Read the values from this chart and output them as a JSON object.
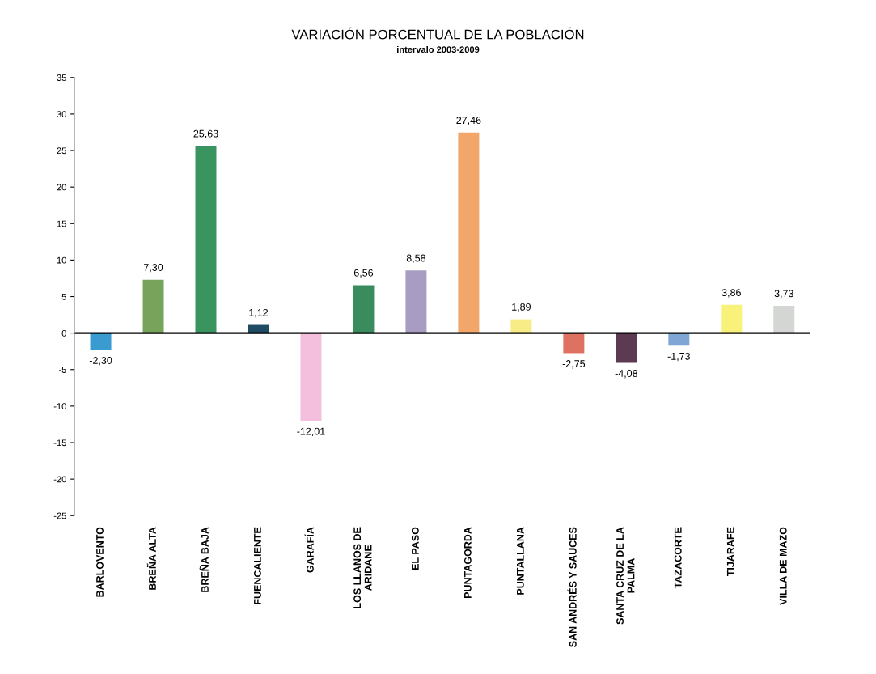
{
  "chart_data": {
    "type": "bar",
    "title": "VARIACIÓN PORCENTUAL DE LA POBLACIÓN",
    "subtitle": "intervalo 2003-2009",
    "categories": [
      "BARLOVENTO",
      "BREÑA ALTA",
      "BREÑA BAJA",
      "FUENCALIENTE",
      "GARAFÍA",
      "LOS LLANOS DE\nARIDANE",
      "EL PASO",
      "PUNTAGORDA",
      "PUNTALLANA",
      "SAN ANDRÉS Y SAUCES",
      "SANTA CRUZ DE LA\nPALMA",
      "TAZACORTE",
      "TIJARAFE",
      "VILLA DE MAZO"
    ],
    "values": [
      -2.3,
      7.3,
      25.63,
      1.12,
      -12.01,
      6.56,
      8.58,
      27.46,
      1.89,
      -2.75,
      -4.08,
      -1.73,
      3.86,
      3.73
    ],
    "value_labels": [
      "-2,30",
      "7,30",
      "25,63",
      "1,12",
      "-12,01",
      "6,56",
      "8,58",
      "27,46",
      "1,89",
      "-2,75",
      "-4,08",
      "-1,73",
      "3,86",
      "3,73"
    ],
    "colors": [
      "#3a9bd0",
      "#77a35a",
      "#3a9460",
      "#1e4c63",
      "#f4bfdc",
      "#3a8c5e",
      "#a99cc3",
      "#f2a66a",
      "#f7ec86",
      "#df7160",
      "#5c3a52",
      "#7fa6d4",
      "#f8f27a",
      "#d3d6d3"
    ],
    "ylim": [
      -25,
      35
    ],
    "yticks": [
      35,
      30,
      25,
      20,
      15,
      10,
      5,
      0,
      -5,
      -10,
      -15,
      -20,
      -25
    ],
    "ref_lines": [
      {
        "axis": "y",
        "value": 0,
        "color": "#000000",
        "line_style": "solid"
      }
    ],
    "grid": false,
    "legend": false
  }
}
